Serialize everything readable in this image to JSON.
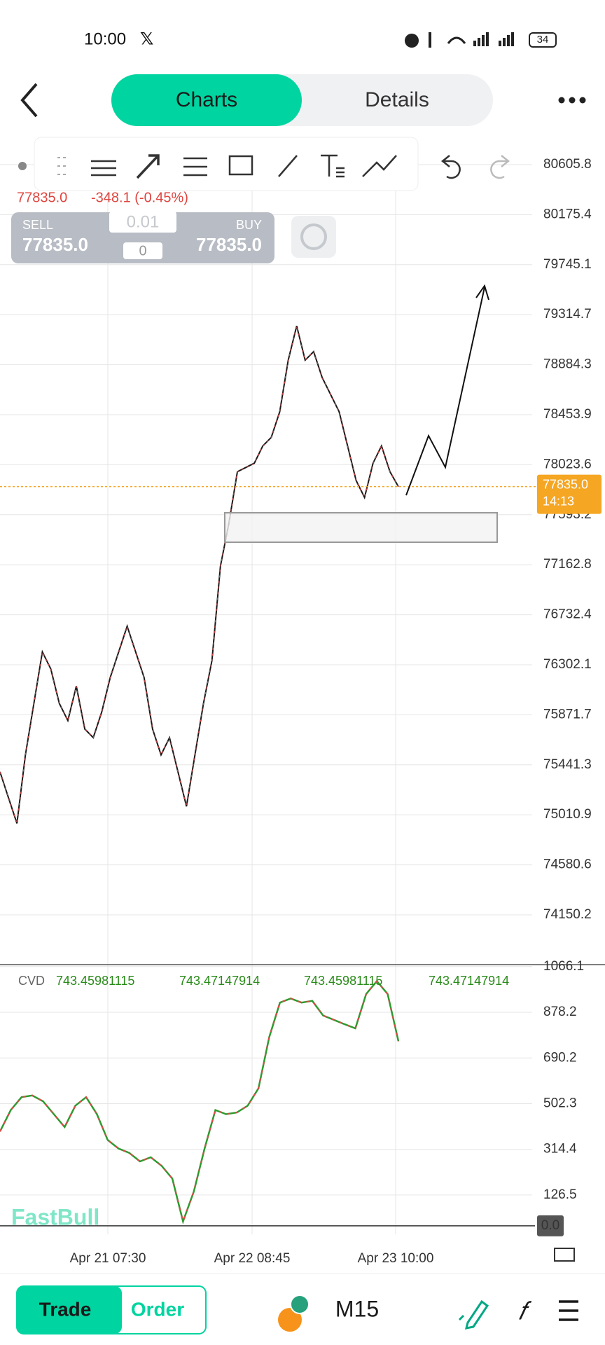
{
  "status_bar": {
    "time": "10:00",
    "battery": "34"
  },
  "tabs": [
    "Charts",
    "Details"
  ],
  "quote": {
    "last": "77835.0",
    "change": "-348.1 (-0.45%)"
  },
  "trade_box": {
    "sell_label": "SELL",
    "sell_price": "77835.0",
    "lot": "0.01",
    "spread": "0",
    "buy_label": "BUY",
    "buy_price": "77835.0"
  },
  "price_chart": {
    "ylim": [
      73722,
      80841
    ],
    "yticks": [
      80605.8,
      80175.4,
      79745.1,
      79314.7,
      78884.3,
      78453.9,
      78023.6,
      77593.2,
      77162.8,
      76732.4,
      76302.1,
      75871.7,
      75441.3,
      75010.9,
      74580.6,
      74150.2
    ],
    "current_price": {
      "value": 77835.0,
      "label": "77835.0"
    },
    "countdown": "14:13",
    "closes": [
      75380,
      75158,
      74937,
      75527,
      75970,
      76413,
      76265,
      75970,
      75822,
      76118,
      75749,
      75675,
      75896,
      76192,
      76413,
      76634,
      76413,
      76192,
      75749,
      75527,
      75675,
      75380,
      75084,
      75527,
      75970,
      76339,
      77151,
      77520,
      77963,
      78000,
      78037,
      78185,
      78259,
      78480,
      78923,
      79218,
      78923,
      78997,
      78775,
      78628,
      78480,
      78185,
      77889,
      77742,
      78037,
      78185,
      77963,
      77835
    ],
    "x_labels": [
      "Apr 21 07:30",
      "Apr 22 08:45",
      "Apr 23 10:00"
    ]
  },
  "cvd": {
    "name": "CVD",
    "readings": [
      "743.45981115",
      "743.47147914",
      "743.45981115",
      "743.47147914"
    ],
    "ylim": [
      -35,
      1074
    ],
    "yticks": [
      {
        "value": 1066.1,
        "label": "1066.1"
      },
      878.2,
      690.2,
      502.3,
      314.4,
      126.5,
      {
        "value": 0,
        "label": "0.0"
      }
    ],
    "values": [
      388,
      476,
      529,
      536,
      512,
      459,
      406,
      494,
      529,
      459,
      353,
      318,
      300,
      265,
      282,
      247,
      194,
      18,
      141,
      318,
      476,
      459,
      466,
      494,
      565,
      776,
      918,
      935,
      918,
      925,
      865,
      847,
      829,
      812,
      953,
      1006,
      953,
      759
    ]
  },
  "watermark": "FastBull",
  "bottom_bar": {
    "trade": "Trade",
    "order": "Order",
    "timeframe": "M15"
  }
}
